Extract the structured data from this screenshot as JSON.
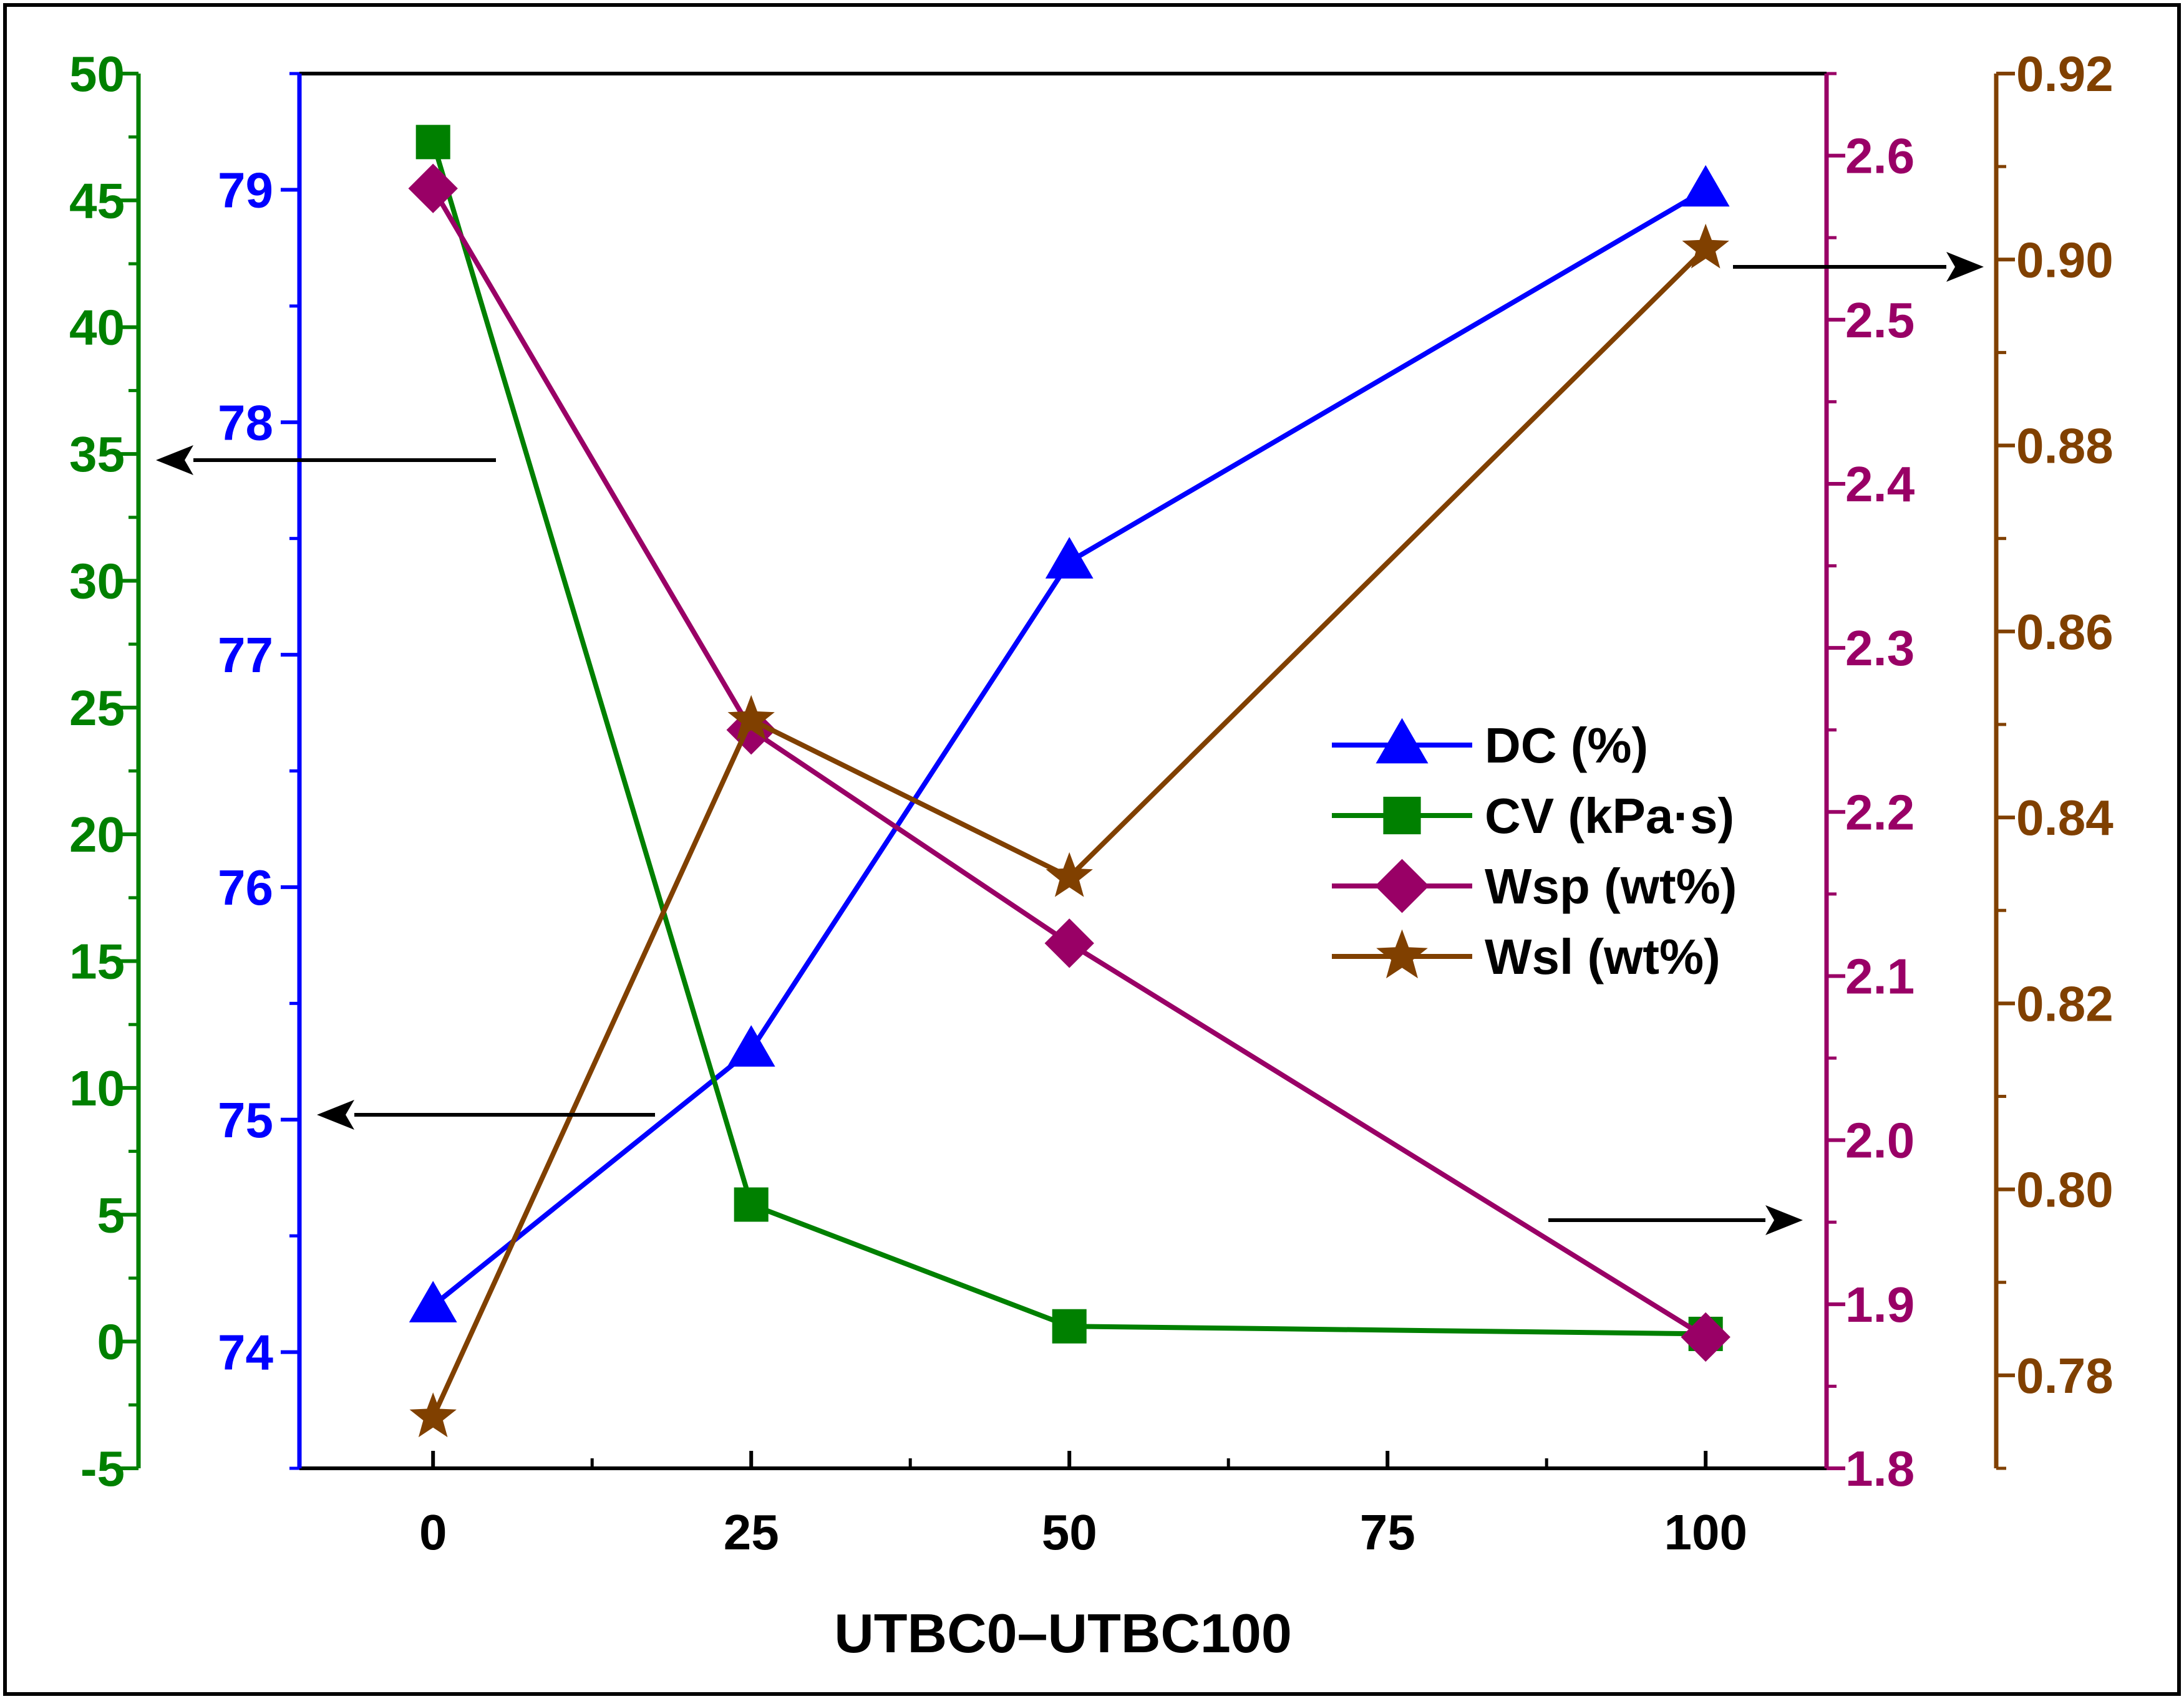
{
  "chart_data": {
    "type": "line",
    "xlabel": "UTBC0–UTBC100",
    "x_ticks": [
      "0",
      "25",
      "50",
      "75",
      "100"
    ],
    "xlim": [
      -10.5,
      109.5
    ],
    "axes": [
      {
        "id": "cv",
        "side": "left-outer",
        "color": "#008000",
        "range": [
          -5,
          50
        ],
        "ticks": [
          "-5",
          "0",
          "5",
          "10",
          "15",
          "20",
          "25",
          "30",
          "35",
          "40",
          "45",
          "50"
        ]
      },
      {
        "id": "dc",
        "side": "left-inner",
        "color": "#0000ff",
        "range": [
          73.5,
          79.5
        ],
        "ticks": [
          "74",
          "75",
          "76",
          "77",
          "78",
          "79"
        ]
      },
      {
        "id": "wsp",
        "side": "right-inner",
        "color": "#990066",
        "range": [
          1.8,
          2.65
        ],
        "ticks": [
          "1.8",
          "1.9",
          "2.0",
          "2.1",
          "2.2",
          "2.3",
          "2.4",
          "2.5",
          "2.6"
        ]
      },
      {
        "id": "wsl",
        "side": "right-outer",
        "color": "#804000",
        "range": [
          0.77,
          0.92
        ],
        "ticks": [
          "0.78",
          "0.80",
          "0.82",
          "0.84",
          "0.86",
          "0.88",
          "0.90",
          "0.92"
        ]
      }
    ],
    "series": [
      {
        "name": "DC (%)",
        "axis": "dc",
        "marker": "triangle",
        "color": "#0000ff",
        "x": [
          0,
          25,
          50,
          100
        ],
        "y": [
          74.2,
          75.3,
          77.4,
          79.0
        ]
      },
      {
        "name": "CV (kPa·s)",
        "axis": "cv",
        "marker": "square",
        "color": "#008000",
        "x": [
          0,
          25,
          50,
          100
        ],
        "y": [
          47.3,
          5.4,
          0.6,
          0.3
        ]
      },
      {
        "name": "Wsp (wt%)",
        "axis": "wsp",
        "marker": "diamond",
        "color": "#990066",
        "x": [
          0,
          25,
          50,
          100
        ],
        "y": [
          2.58,
          2.25,
          2.12,
          1.88
        ]
      },
      {
        "name": "Wsl (wt%)",
        "axis": "wsl",
        "marker": "star",
        "color": "#804000",
        "x": [
          0,
          25,
          50,
          100
        ],
        "y": [
          0.7755,
          0.8505,
          0.8336,
          0.9012
        ]
      }
    ],
    "legend_position": "center-right",
    "annotations": [
      {
        "type": "arrow",
        "direction": "left",
        "points_to": "cv"
      },
      {
        "type": "arrow",
        "direction": "left",
        "points_to": "dc"
      },
      {
        "type": "arrow",
        "direction": "right",
        "points_to": "wsp"
      },
      {
        "type": "arrow",
        "direction": "right",
        "points_to": "wsl"
      }
    ]
  }
}
